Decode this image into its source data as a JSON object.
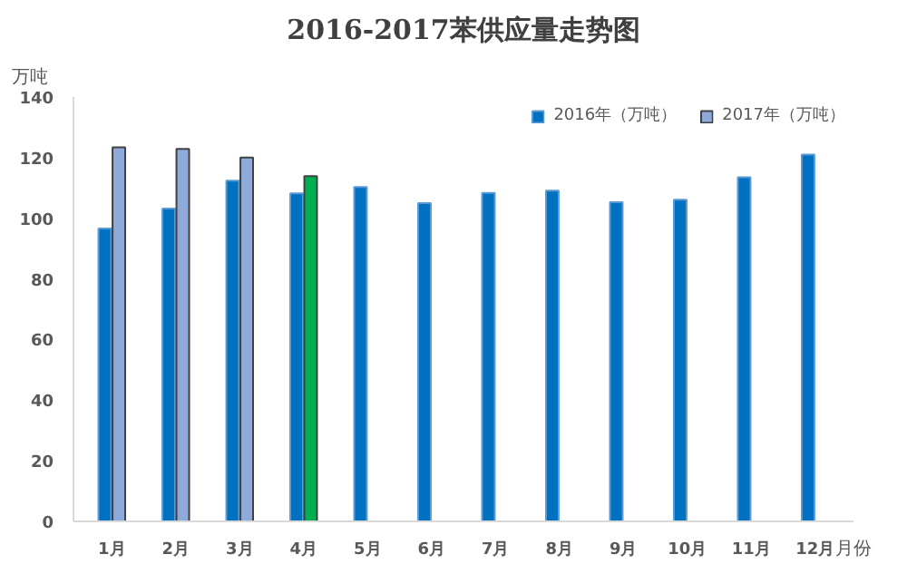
{
  "chart_data": {
    "type": "bar",
    "title": "2016-2017苯供应量走势图",
    "ylabel": "万吨",
    "xlabel": "月份",
    "categories": [
      "1月",
      "2月",
      "3月",
      "4月",
      "5月",
      "6月",
      "7月",
      "8月",
      "9月",
      "10月",
      "11月",
      "12月"
    ],
    "series": [
      {
        "name": "2016年（万吨）",
        "color": "#0070c0",
        "values": [
          96.6,
          103.2,
          112.4,
          108.2,
          110.3,
          105,
          108.4,
          109.1,
          105.3,
          106.1,
          113.5,
          121
        ]
      },
      {
        "name": "2017年（万吨）",
        "color": "#8eaadb",
        "colors": [
          null,
          null,
          null,
          "#00b050",
          null,
          null,
          null,
          null,
          null,
          null,
          null,
          null
        ],
        "values": [
          123.4,
          122.9,
          120,
          113.9,
          null,
          null,
          null,
          null,
          null,
          null,
          null,
          null
        ]
      }
    ],
    "ylim": [
      0,
      140
    ],
    "yticks": [
      0,
      20,
      40,
      60,
      80,
      100,
      120,
      140
    ],
    "grid": false,
    "legend": "top right"
  }
}
